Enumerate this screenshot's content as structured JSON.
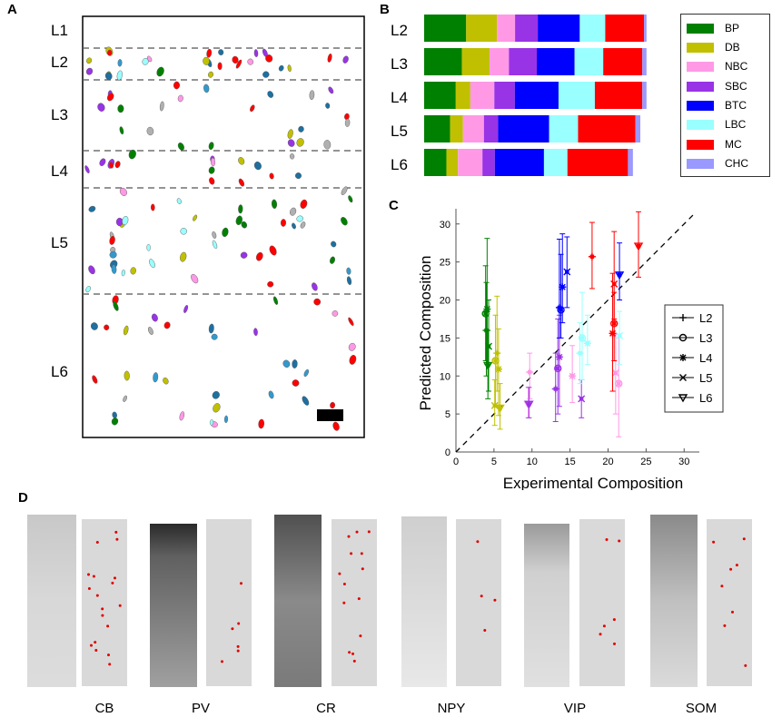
{
  "panels": {
    "a": "A",
    "b": "B",
    "c": "C",
    "d": "D"
  },
  "panel_a": {
    "layers": [
      "L1",
      "L2",
      "L3",
      "L4",
      "L5",
      "L6"
    ]
  },
  "colors": {
    "BP": "#008000",
    "DB": "#c0c000",
    "NBC": "#ff99e6",
    "SBC": "#9933e6",
    "BTC": "#0000ff",
    "LBC": "#99ffff",
    "MC": "#ff0000",
    "CHC": "#9999ff"
  },
  "chart_data": [
    {
      "type": "bar",
      "orientation": "horizontal-stacked",
      "panel": "B",
      "categories": [
        "L2",
        "L3",
        "L4",
        "L5",
        "L6"
      ],
      "series": [
        {
          "name": "BP",
          "values": [
            17.0,
            15.3,
            12.8,
            10.5,
            9.0
          ]
        },
        {
          "name": "DB",
          "values": [
            12.5,
            11.2,
            5.9,
            5.2,
            4.7
          ]
        },
        {
          "name": "NBC",
          "values": [
            7.3,
            7.8,
            9.7,
            8.5,
            9.9
          ]
        },
        {
          "name": "SBC",
          "values": [
            9.2,
            11.3,
            8.3,
            5.7,
            5.0
          ]
        },
        {
          "name": "BTC",
          "values": [
            17.0,
            15.3,
            17.7,
            20.7,
            19.9
          ]
        },
        {
          "name": "LBC",
          "values": [
            10.3,
            11.6,
            14.7,
            11.7,
            9.5
          ]
        },
        {
          "name": "MC",
          "values": [
            15.7,
            15.8,
            19.2,
            23.2,
            24.5
          ]
        },
        {
          "name": "CHC",
          "values": [
            1.0,
            1.7,
            1.7,
            2.0,
            2.0
          ]
        }
      ],
      "legend": [
        "BP",
        "DB",
        "NBC",
        "SBC",
        "BTC",
        "LBC",
        "MC",
        "CHC"
      ],
      "legend_position": "right",
      "xlim": [
        0,
        100
      ]
    },
    {
      "type": "scatter",
      "panel": "C",
      "xlabel": "Experimental Composition",
      "ylabel": "Predicted Composition",
      "xlim": [
        0,
        32
      ],
      "ylim": [
        0,
        32
      ],
      "xticks": [
        0,
        5,
        10,
        15,
        20,
        25,
        30
      ],
      "yticks": [
        0,
        5,
        10,
        15,
        20,
        25,
        30
      ],
      "reference_line": "y = x (dashed)",
      "legend": [
        "L2",
        "L3",
        "L4",
        "L5",
        "L6"
      ],
      "legend_position": "right",
      "points": [
        {
          "type": "BP",
          "layer": "L2",
          "x": 4.0,
          "y": 16.0,
          "lo": 10.0,
          "hi": 22.3
        },
        {
          "type": "BP",
          "layer": "L3",
          "x": 3.9,
          "y": 18.2,
          "lo": 12.0,
          "hi": 24.5
        },
        {
          "type": "BP",
          "layer": "L4",
          "x": 4.1,
          "y": 18.8,
          "lo": 11.5,
          "hi": 28.1
        },
        {
          "type": "BP",
          "layer": "L5",
          "x": 4.3,
          "y": 13.9,
          "lo": 8.0,
          "hi": 20.0
        },
        {
          "type": "BP",
          "layer": "L6",
          "x": 4.2,
          "y": 11.4,
          "lo": 7.0,
          "hi": 16.0
        },
        {
          "type": "DB",
          "layer": "L2",
          "x": 5.4,
          "y": 13.0,
          "lo": 8.0,
          "hi": 20.5
        },
        {
          "type": "DB",
          "layer": "L3",
          "x": 5.2,
          "y": 12.0,
          "lo": 6.0,
          "hi": 18.0
        },
        {
          "type": "DB",
          "layer": "L4",
          "x": 5.6,
          "y": 10.9,
          "lo": 4.8,
          "hi": 16.2
        },
        {
          "type": "DB",
          "layer": "L5",
          "x": 5.1,
          "y": 6.1,
          "lo": 3.5,
          "hi": 9.5
        },
        {
          "type": "DB",
          "layer": "L6",
          "x": 5.8,
          "y": 5.8,
          "lo": 3.0,
          "hi": 9.0
        },
        {
          "type": "NBC",
          "layer": "L2",
          "x": 9.7,
          "y": 10.5,
          "lo": 7.0,
          "hi": 13.0
        },
        {
          "type": "NBC",
          "layer": "L4",
          "x": 15.3,
          "y": 10.0,
          "lo": 6.5,
          "hi": 14.0
        },
        {
          "type": "NBC",
          "layer": "L5",
          "x": 21.0,
          "y": 10.4,
          "lo": 5.0,
          "hi": 15.5
        },
        {
          "type": "NBC",
          "layer": "L3",
          "x": 21.4,
          "y": 9.0,
          "lo": 2.0,
          "hi": 15.5
        },
        {
          "type": "NBC",
          "layer": "L6",
          "x": 9.5,
          "y": 6.3,
          "lo": 4.5,
          "hi": 8.5
        },
        {
          "type": "SBC",
          "layer": "L2",
          "x": 13.1,
          "y": 8.3,
          "lo": 4.0,
          "hi": 13.0
        },
        {
          "type": "SBC",
          "layer": "L3",
          "x": 13.4,
          "y": 11.0,
          "lo": 5.0,
          "hi": 17.5
        },
        {
          "type": "SBC",
          "layer": "L4",
          "x": 13.6,
          "y": 12.5,
          "lo": 6.0,
          "hi": 18.0
        },
        {
          "type": "SBC",
          "layer": "L5",
          "x": 16.5,
          "y": 7.0,
          "lo": 4.5,
          "hi": 9.5
        },
        {
          "type": "SBC",
          "layer": "L6",
          "x": 9.6,
          "y": 6.3,
          "lo": 4.5,
          "hi": 8.5
        },
        {
          "type": "BTC",
          "layer": "L2",
          "x": 13.6,
          "y": 19.0,
          "lo": 15.0,
          "hi": 28.0
        },
        {
          "type": "BTC",
          "layer": "L3",
          "x": 13.8,
          "y": 18.7,
          "lo": 15.0,
          "hi": 26.0
        },
        {
          "type": "BTC",
          "layer": "L4",
          "x": 14.0,
          "y": 21.7,
          "lo": 17.0,
          "hi": 28.7
        },
        {
          "type": "BTC",
          "layer": "L5",
          "x": 14.6,
          "y": 23.7,
          "lo": 19.0,
          "hi": 28.3
        },
        {
          "type": "BTC",
          "layer": "L6",
          "x": 21.5,
          "y": 23.3,
          "lo": 20.0,
          "hi": 27.5
        },
        {
          "type": "LBC",
          "layer": "L2",
          "x": 16.3,
          "y": 13.0,
          "lo": 9.0,
          "hi": 17.0
        },
        {
          "type": "LBC",
          "layer": "L3",
          "x": 16.6,
          "y": 15.0,
          "lo": 9.5,
          "hi": 21.0
        },
        {
          "type": "LBC",
          "layer": "L4",
          "x": 17.3,
          "y": 14.3,
          "lo": 11.5,
          "hi": 18.0
        },
        {
          "type": "LBC",
          "layer": "L5",
          "x": 21.5,
          "y": 15.3,
          "lo": 11.5,
          "hi": 18.5
        },
        {
          "type": "MC",
          "layer": "L2",
          "x": 17.9,
          "y": 25.7,
          "lo": 21.5,
          "hi": 30.2
        },
        {
          "type": "MC",
          "layer": "L3",
          "x": 20.8,
          "y": 16.9,
          "lo": 12.0,
          "hi": 21.0
        },
        {
          "type": "MC",
          "layer": "L4",
          "x": 20.6,
          "y": 15.6,
          "lo": 8.0,
          "hi": 23.5
        },
        {
          "type": "MC",
          "layer": "L5",
          "x": 20.8,
          "y": 22.1,
          "lo": 17.5,
          "hi": 29.0
        },
        {
          "type": "MC",
          "layer": "L6",
          "x": 24.0,
          "y": 27.1,
          "lo": 23.0,
          "hi": 31.6
        }
      ]
    }
  ],
  "panel_d": {
    "stains": [
      "CB",
      "PV",
      "CR",
      "NPY",
      "VIP",
      "SOM"
    ]
  }
}
